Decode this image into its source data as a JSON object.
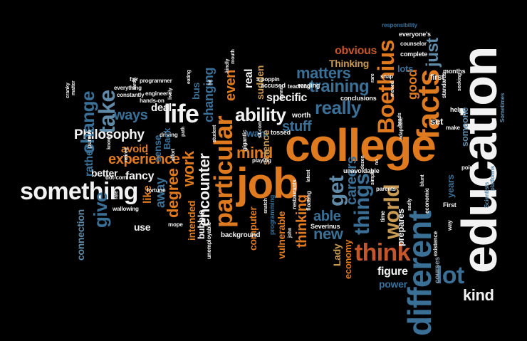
{
  "words": {
    "education": "education",
    "college": "college",
    "job": "job",
    "something": "something",
    "different": "different",
    "facts": "facts",
    "life": "life",
    "particular": "particular",
    "Boethius": "Boethius",
    "think": "think",
    "world": "world",
    "things": "things",
    "ability": "ability",
    "lot": "lot",
    "take": "take",
    "training": "training",
    "matters": "matters",
    "really": "really",
    "get": "get",
    "Philosophy": "Philosophy",
    "experience": "experience",
    "mind": "mind",
    "just": "just",
    "change": "change",
    "ways": "ways",
    "encounter": "encounter",
    "kind": "kind",
    "give": "give",
    "degree": "degree",
    "work": "work",
    "new": "new",
    "able": "able",
    "thinking": "thinking",
    "careers": "careers",
    "figure": "figure",
    "obvious": "obvious",
    "Thinking": "Thinking",
    "good": "good",
    "stuff": "stuff",
    "specific": "specific",
    "want": "want",
    "even": "even",
    "changing": "changing",
    "away": "away",
    "fancy": "fancy",
    "avoid": "avoid",
    "better": "better",
    "rather": "rather",
    "like": "like",
    "connection": "connection",
    "use": "use",
    "sense": "sense",
    "intended": "intended",
    "bubble": "bubble",
    "computer": "computer",
    "vulnerable": "vulnerable",
    "science": "science",
    "real": "real",
    "sudden": "sudden",
    "deal": "deal",
    "bus": "bus",
    "Lady": "Lady",
    "economy": "economy",
    "power": "power",
    "prepares": "prepares",
    "someone": "someone",
    "lots": "lots",
    "set": "set",
    "years": "years",
    "first": "first",
    "help": "help",
    "courses": "courses",
    "unavoidable": "unavoidable",
    "Severinus": "Severinus",
    "programming": "programming",
    "background": "background",
    "accused": "accused",
    "conclusions": "conclusions",
    "reading": "reading",
    "teaching": "teaching",
    "worth": "worth",
    "tossed": "tossed",
    "complete": "complete",
    "everyones": "everyone's",
    "responsibility": "responsibility",
    "counselor": "counselor",
    "months": "months",
    "standards": "standards",
    "Sometimes": "Sometimes",
    "make": "make",
    "platforms": "platforms",
    "Scientists": "Scientists",
    "point": "point",
    "way": "way",
    "existence": "existence",
    "economic": "economic",
    "parents": "parents",
    "time": "time",
    "restaurants": "restaurants",
    "First": "First",
    "floating": "floating",
    "wallowing": "wallowing",
    "mope": "mope",
    "pursue": "pursue",
    "constantly": "constantly",
    "everything": "everything",
    "engineers": "engineers",
    "programmer": "programmer",
    "handson": "hands-on",
    "fortune": "fortune",
    "driving": "driving",
    "dotcom": "dot-com",
    "gigantic": "gigantic",
    "apoppin": "a-poppin",
    "playing": "playing",
    "student": "student",
    "unemployable": "unemployable",
    "snap": "snap",
    "adaptable": "adaptable",
    "fair": "fair",
    "eating": "eating",
    "cranky": "cranky",
    "matter": "matter",
    "effort": "effort",
    "Back": "Back",
    "path": "path",
    "mouth": "mouth",
    "sitcom": "sit-com",
    "john": "john",
    "snatch": "snatch",
    "tardy": "tardy",
    "sadly": "sadly",
    "blunt": "blunt",
    "heads": "heads",
    "simple": "simple",
    "dozen": "dozen",
    "latest": "latest",
    "seeking": "seeking",
    "tennis": "tennis",
    "lively": "lively",
    "knows": "knows",
    "fate": "fate",
    "hit": "hit",
    "kindly": "kindly",
    "retired": "retired",
    "moved": "moved",
    "no": "no",
    "rare": "rare"
  },
  "colors": {
    "background": "#000000",
    "white": "#f2f2f2",
    "orange": "#e07a1f",
    "rust": "#c5552a",
    "tan": "#c99a52",
    "blue": "#3a6f96",
    "steel": "#5f8aa8",
    "navy": "#2c4d6b",
    "gray": "#8a9aa6"
  }
}
